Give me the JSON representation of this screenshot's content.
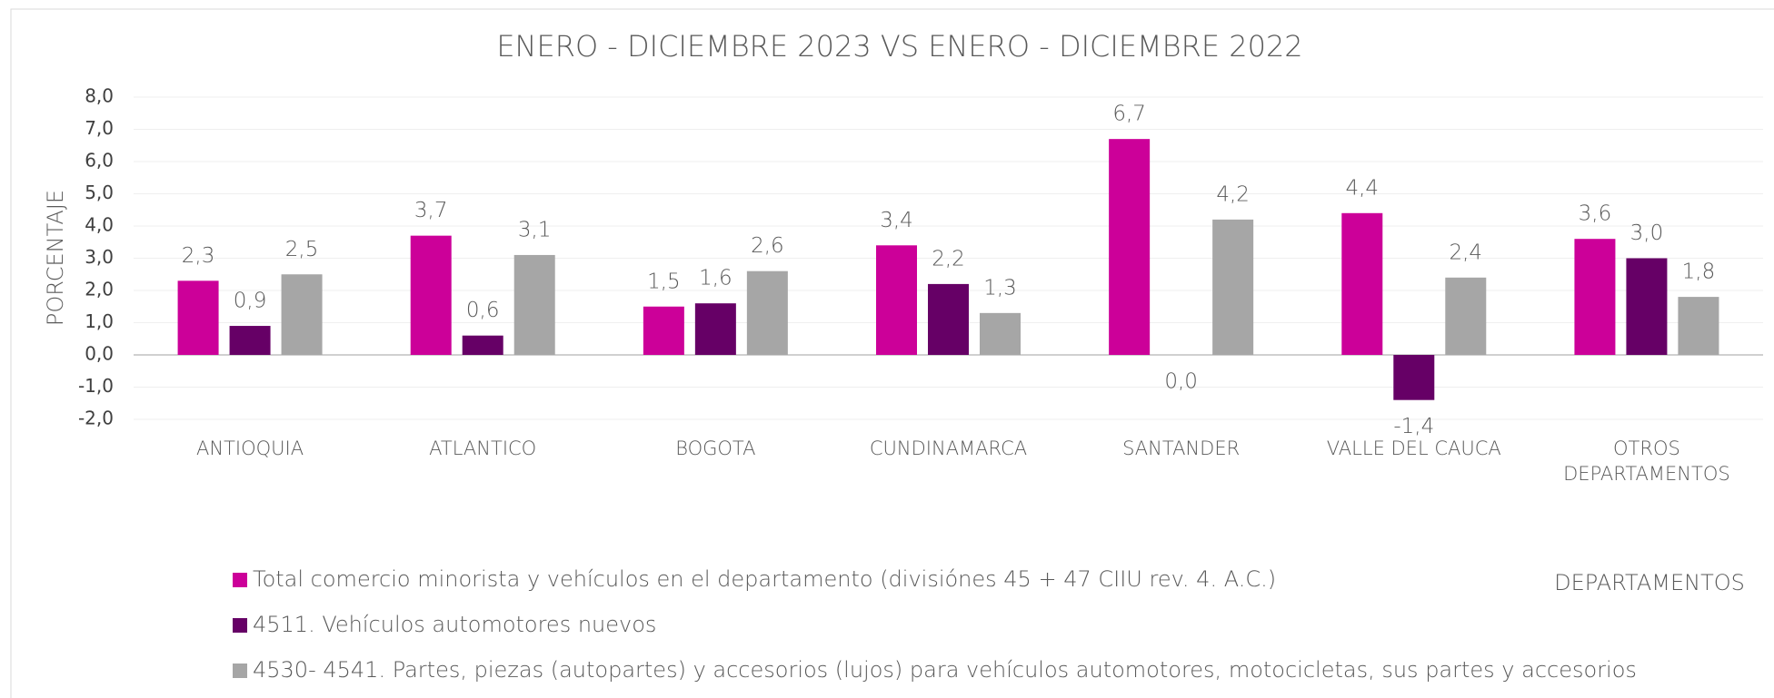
{
  "chart_data": {
    "type": "bar",
    "title": "ENERO - DICIEMBRE 2023 VS ENERO - DICIEMBRE 2022",
    "y_label": "PORCENTAJE",
    "x_label": "DEPARTAMENTOS",
    "categories": [
      "ANTIOQUIA",
      "ATLANTICO",
      "BOGOTA",
      "CUNDINAMARCA",
      "SANTANDER",
      "VALLE DEL CAUCA",
      "OTROS DEPARTAMENTOS"
    ],
    "series": [
      {
        "name": "Total comercio minorista y vehículos en el departamento (divisiónes 45 + 47  CIIU rev. 4. A.C.)",
        "color": "#cc0099",
        "values": [
          2.3,
          3.7,
          1.5,
          3.4,
          6.7,
          4.4,
          3.6
        ],
        "value_labels": [
          "2,3",
          "3,7",
          "1,5",
          "3,4",
          "6,7",
          "4,4",
          "3,6"
        ]
      },
      {
        "name": "4511. Vehículos automotores nuevos",
        "color": "#660066",
        "values": [
          0.9,
          0.6,
          1.6,
          2.2,
          0.0,
          -1.4,
          3.0
        ],
        "value_labels": [
          "0,9",
          "0,6",
          "1,6",
          "2,2",
          "0,0",
          "-1,4",
          "3,0"
        ]
      },
      {
        "name": "4530- 4541. Partes, piezas (autopartes) y accesorios (lujos) para vehículos automotores, motocicletas, sus partes y accesorios",
        "color": "#a6a6a6",
        "values": [
          2.5,
          3.1,
          2.6,
          1.3,
          4.2,
          2.4,
          1.8
        ],
        "value_labels": [
          "2,5",
          "3,1",
          "2,6",
          "1,3",
          "4,2",
          "2,4",
          "1,8"
        ]
      }
    ],
    "ylim": [
      -2,
      8
    ],
    "yticks": [
      {
        "value": -2,
        "label": "-2,0"
      },
      {
        "value": -1,
        "label": "-1,0"
      },
      {
        "value": 0,
        "label": "0,0"
      },
      {
        "value": 1,
        "label": "1,0"
      },
      {
        "value": 2,
        "label": "2,0"
      },
      {
        "value": 3,
        "label": "3,0"
      },
      {
        "value": 4,
        "label": "4,0"
      },
      {
        "value": 5,
        "label": "5,0"
      },
      {
        "value": 6,
        "label": "6,0"
      },
      {
        "value": 7,
        "label": "7,0"
      },
      {
        "value": 8,
        "label": "8,0"
      }
    ],
    "grid": true
  }
}
